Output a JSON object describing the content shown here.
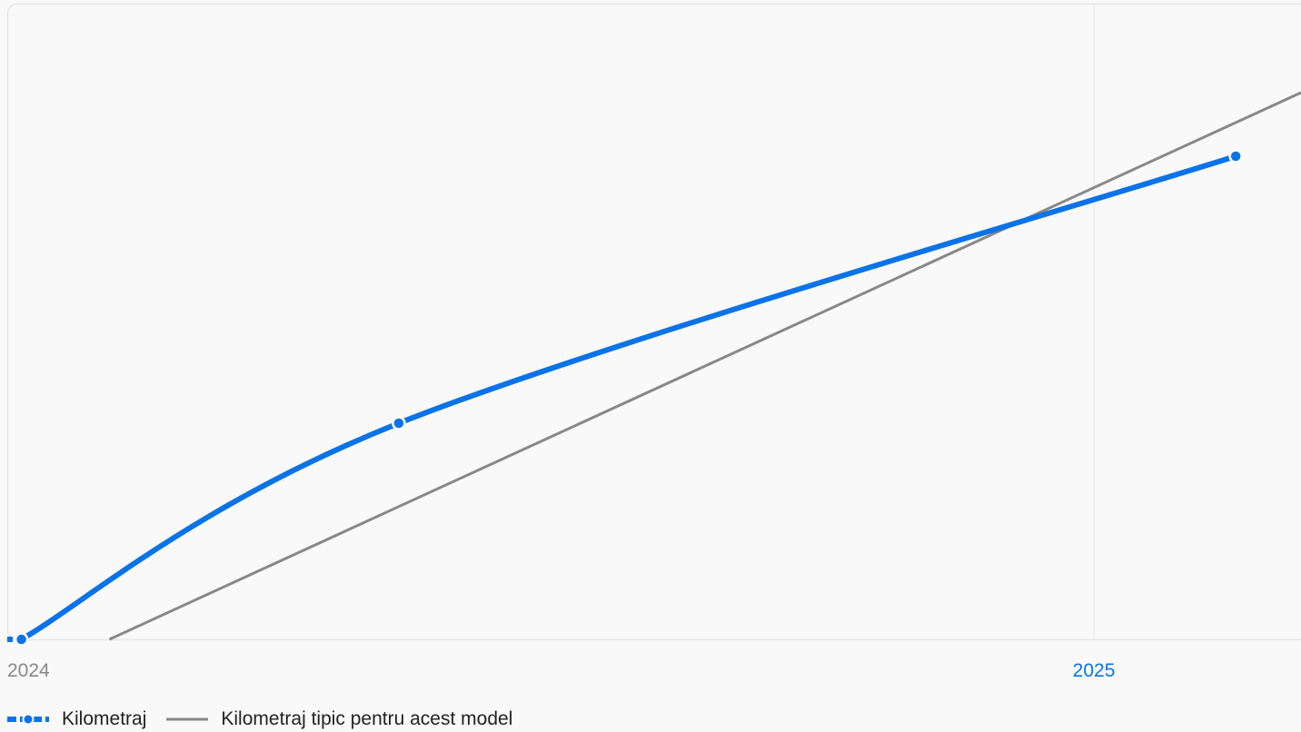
{
  "chart_data": {
    "type": "line",
    "x_ticks": [
      {
        "label": "2024",
        "highlighted": false
      },
      {
        "label": "2025",
        "highlighted": true
      }
    ],
    "series": [
      {
        "name": "Kilometraj",
        "color": "#0a73e8",
        "style": "smooth-with-markers",
        "points": [
          {
            "x": "2023-12-20",
            "y": 0
          },
          {
            "x": "2024-05-01",
            "y": 34
          },
          {
            "x": "2025-02-20",
            "y": 76
          }
        ]
      },
      {
        "name": "Kilometraj tipic pentru acest model",
        "color": "#888888",
        "style": "straight",
        "points": [
          {
            "x": "2024-01-20",
            "y": 0
          },
          {
            "x": "2025-03-15",
            "y": 86
          }
        ]
      }
    ],
    "x_range": [
      "2023-12-15",
      "2025-03-15"
    ],
    "y_range": [
      0,
      100
    ],
    "grid": "vertical-at-ticks",
    "legend_position": "bottom-left"
  },
  "colors": {
    "background": "#f9f9f9",
    "plot_border": "#e6e6e6",
    "grid": "#e6e6e6",
    "tick_default": "#888888",
    "tick_highlight": "#0a73e8"
  }
}
